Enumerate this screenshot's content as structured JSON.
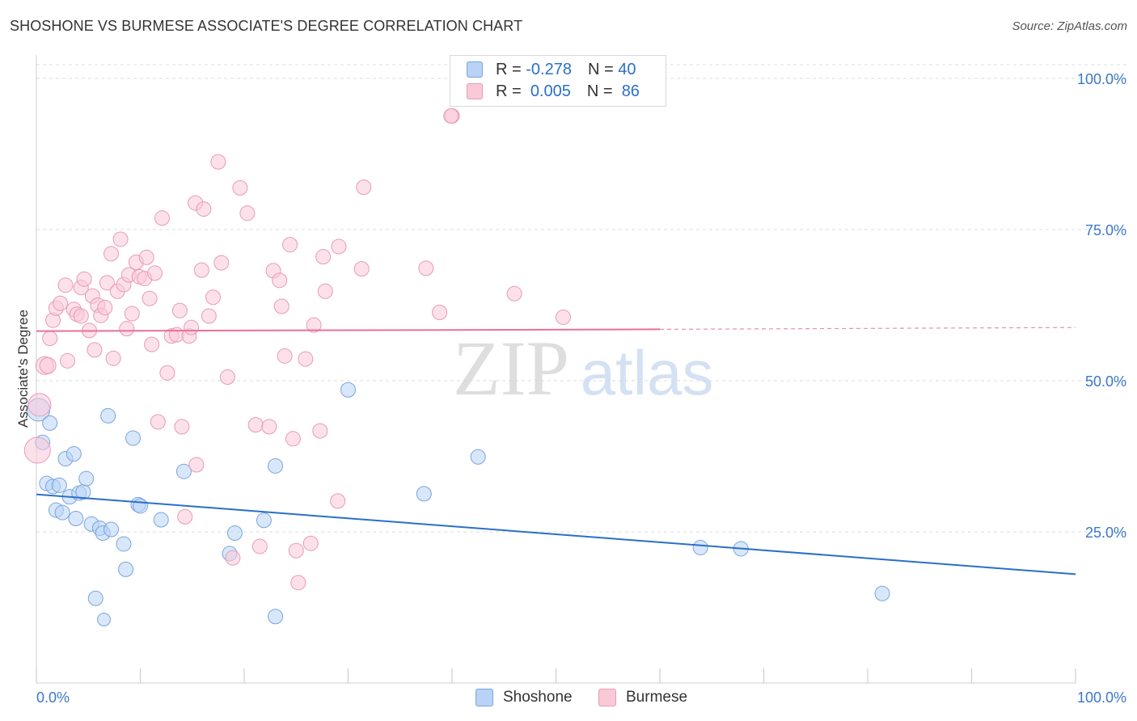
{
  "title": "SHOSHONE VS BURMESE ASSOCIATE'S DEGREE CORRELATION CHART",
  "source": "Source: ZipAtlas.com",
  "watermark": {
    "zip": "ZIP",
    "atlas": "atlas"
  },
  "legend_top": [
    {
      "r_label": "R =",
      "r_value": "-0.278",
      "n_label": "N =",
      "n_value": "40",
      "swatch_fill": "#b8d3f5",
      "swatch_border": "#7aa5dd"
    },
    {
      "r_label": "R =",
      "r_value": "0.005",
      "n_label": "N =",
      "n_value": "86",
      "swatch_fill": "#f9c9d8",
      "swatch_border": "#e99ab4"
    }
  ],
  "bottom_legend": [
    {
      "label": "Shoshone",
      "color": "#b8d3f5",
      "border": "#7aa5dd"
    },
    {
      "label": "Burmese",
      "color": "#f9c9d8",
      "border": "#e99ab4"
    }
  ],
  "colors": {
    "blue_line": "#2a6fc9",
    "pink_line": "#e8709a",
    "axis_text": "#3a78c9",
    "grid": "#dddddd"
  },
  "chart_data": {
    "type": "scatter",
    "title": "SHOSHONE VS BURMESE ASSOCIATE'S DEGREE CORRELATION CHART",
    "xlabel": "",
    "ylabel": "Associate's Degree",
    "xlim": [
      0,
      100
    ],
    "ylim": [
      0,
      100
    ],
    "x_tick_labels": [
      "0.0%",
      "100.0%"
    ],
    "y_ticks": [
      25,
      50,
      75,
      100
    ],
    "y_tick_labels": [
      "25.0%",
      "50.0%",
      "75.0%",
      "100.0%"
    ],
    "grid": true,
    "series": [
      {
        "name": "Shoshone",
        "color": "#b8d3f5",
        "trend": {
          "x": [
            0,
            100
          ],
          "y": [
            31.2,
            18.0
          ],
          "dashed_from": null
        },
        "points": [
          [
            0.2,
            45.2,
            14
          ],
          [
            0.6,
            39.8,
            9
          ],
          [
            1.0,
            33.0,
            9
          ],
          [
            1.3,
            43.0,
            9
          ],
          [
            1.6,
            32.5,
            9
          ],
          [
            1.9,
            28.6,
            9
          ],
          [
            2.2,
            32.7,
            9
          ],
          [
            2.5,
            28.2,
            9
          ],
          [
            2.8,
            37.1,
            9
          ],
          [
            3.2,
            30.8,
            9
          ],
          [
            3.6,
            37.9,
            9
          ],
          [
            3.8,
            27.2,
            9
          ],
          [
            4.1,
            31.4,
            9
          ],
          [
            4.5,
            31.6,
            9
          ],
          [
            4.8,
            33.8,
            9
          ],
          [
            5.3,
            26.3,
            9
          ],
          [
            5.7,
            14.0,
            9
          ],
          [
            6.1,
            25.6,
            9
          ],
          [
            6.4,
            24.8,
            9
          ],
          [
            7.2,
            25.4,
            9
          ],
          [
            6.5,
            10.5,
            8
          ],
          [
            8.4,
            23.0,
            9
          ],
          [
            8.6,
            18.8,
            9
          ],
          [
            9.3,
            40.5,
            9
          ],
          [
            9.8,
            29.5,
            9
          ],
          [
            10.0,
            29.3,
            9
          ],
          [
            12.0,
            27.0,
            9
          ],
          [
            14.2,
            35.0,
            9
          ],
          [
            18.6,
            21.4,
            9
          ],
          [
            19.1,
            24.8,
            9
          ],
          [
            21.9,
            26.9,
            9
          ],
          [
            23.0,
            35.9,
            9
          ],
          [
            23.0,
            11.0,
            9
          ],
          [
            6.9,
            44.2,
            9
          ],
          [
            30.0,
            48.5,
            9
          ],
          [
            37.3,
            31.3,
            9
          ],
          [
            42.5,
            37.4,
            9
          ],
          [
            63.9,
            22.4,
            9
          ],
          [
            67.8,
            22.2,
            9
          ],
          [
            81.4,
            14.8,
            9
          ]
        ]
      },
      {
        "name": "Burmese",
        "color": "#f9c9d8",
        "trend": {
          "x": [
            0,
            60,
            100
          ],
          "y": [
            58.2,
            58.5,
            58.8
          ],
          "dashed_from": 60
        },
        "points": [
          [
            0.1,
            38.5,
            16
          ],
          [
            0.3,
            46.0,
            14
          ],
          [
            0.8,
            52.5,
            11
          ],
          [
            1.1,
            52.5,
            10
          ],
          [
            1.3,
            57.0,
            9
          ],
          [
            1.6,
            60.0,
            9
          ],
          [
            1.9,
            62.0,
            9
          ],
          [
            2.3,
            62.8,
            9
          ],
          [
            2.8,
            65.8,
            9
          ],
          [
            3.0,
            53.3,
            9
          ],
          [
            3.6,
            61.8,
            9
          ],
          [
            3.9,
            61.0,
            9
          ],
          [
            4.3,
            60.7,
            9
          ],
          [
            4.3,
            65.4,
            9
          ],
          [
            4.6,
            66.8,
            9
          ],
          [
            5.1,
            58.3,
            9
          ],
          [
            5.4,
            64.0,
            9
          ],
          [
            5.6,
            55.1,
            9
          ],
          [
            5.9,
            62.5,
            9
          ],
          [
            6.2,
            60.8,
            9
          ],
          [
            6.6,
            62.1,
            9
          ],
          [
            6.8,
            66.2,
            9
          ],
          [
            7.2,
            71.0,
            9
          ],
          [
            7.4,
            53.7,
            9
          ],
          [
            7.8,
            64.8,
            9
          ],
          [
            8.1,
            73.4,
            9
          ],
          [
            8.4,
            65.9,
            9
          ],
          [
            8.7,
            58.6,
            9
          ],
          [
            8.9,
            67.5,
            9
          ],
          [
            9.2,
            61.1,
            9
          ],
          [
            9.6,
            69.6,
            9
          ],
          [
            9.9,
            67.2,
            9
          ],
          [
            10.4,
            66.9,
            9
          ],
          [
            10.6,
            70.4,
            9
          ],
          [
            10.9,
            63.6,
            9
          ],
          [
            11.1,
            56.0,
            9
          ],
          [
            11.4,
            67.8,
            9
          ],
          [
            11.7,
            43.2,
            9
          ],
          [
            12.1,
            76.9,
            9
          ],
          [
            12.6,
            51.3,
            9
          ],
          [
            13.0,
            57.4,
            9
          ],
          [
            13.5,
            57.6,
            9
          ],
          [
            13.8,
            61.6,
            9
          ],
          [
            14.0,
            42.4,
            9
          ],
          [
            14.3,
            27.5,
            9
          ],
          [
            14.7,
            57.4,
            9
          ],
          [
            14.9,
            58.8,
            9
          ],
          [
            15.3,
            79.4,
            9
          ],
          [
            15.4,
            36.1,
            9
          ],
          [
            15.9,
            68.3,
            9
          ],
          [
            16.1,
            78.4,
            9
          ],
          [
            16.6,
            60.7,
            9
          ],
          [
            17.0,
            63.8,
            9
          ],
          [
            17.5,
            86.2,
            9
          ],
          [
            17.8,
            69.5,
            9
          ],
          [
            18.4,
            50.6,
            9
          ],
          [
            18.9,
            20.7,
            9
          ],
          [
            19.6,
            81.9,
            9
          ],
          [
            20.3,
            77.7,
            9
          ],
          [
            21.1,
            42.7,
            9
          ],
          [
            21.5,
            22.6,
            9
          ],
          [
            22.4,
            42.4,
            9
          ],
          [
            22.8,
            68.2,
            9
          ],
          [
            23.4,
            66.6,
            9
          ],
          [
            23.6,
            62.3,
            9
          ],
          [
            23.9,
            54.1,
            9
          ],
          [
            24.4,
            72.5,
            9
          ],
          [
            24.7,
            40.4,
            9
          ],
          [
            25.0,
            21.9,
            9
          ],
          [
            25.2,
            16.6,
            9
          ],
          [
            25.9,
            53.6,
            9
          ],
          [
            26.4,
            23.1,
            9
          ],
          [
            26.7,
            59.2,
            9
          ],
          [
            27.3,
            41.7,
            9
          ],
          [
            27.6,
            70.5,
            9
          ],
          [
            27.8,
            64.8,
            9
          ],
          [
            29.0,
            30.1,
            9
          ],
          [
            29.1,
            72.2,
            9
          ],
          [
            31.3,
            68.5,
            9
          ],
          [
            31.5,
            82.0,
            9
          ],
          [
            37.5,
            68.6,
            9
          ],
          [
            38.8,
            61.3,
            9
          ],
          [
            40.0,
            93.8,
            9
          ],
          [
            46.0,
            64.4,
            9
          ],
          [
            50.7,
            60.5,
            9
          ],
          [
            39.9,
            93.8,
            9
          ]
        ]
      }
    ]
  }
}
